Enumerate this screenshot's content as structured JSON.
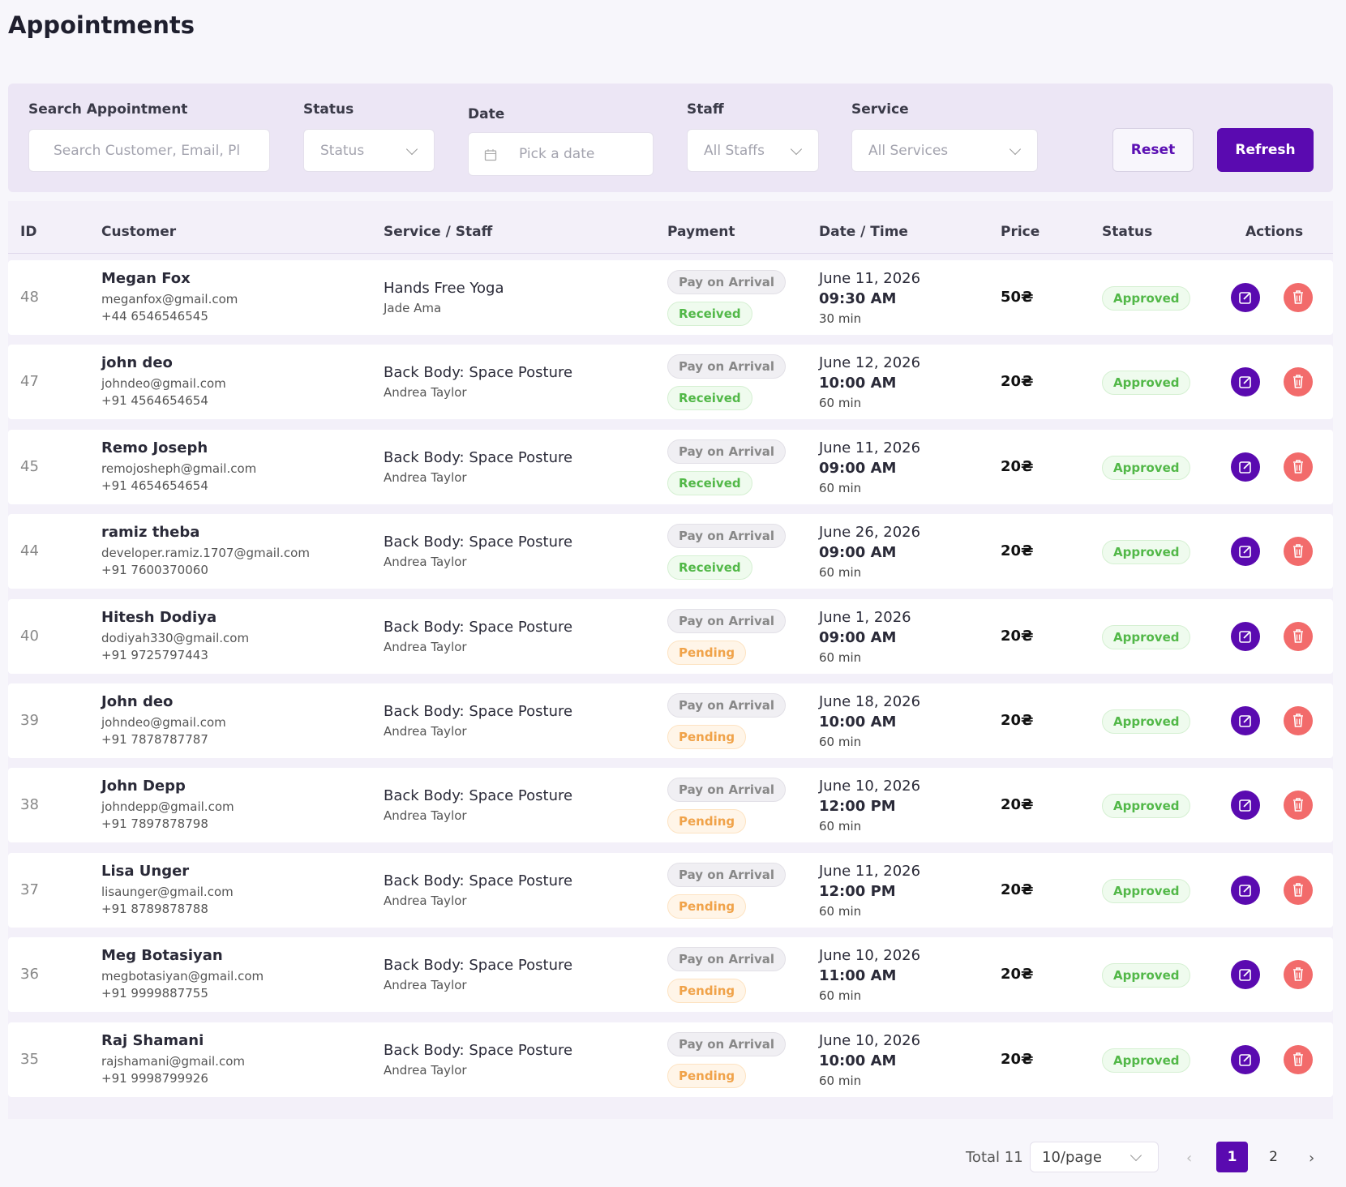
{
  "header": {
    "title": "Appointments"
  },
  "filters": {
    "search": {
      "label": "Search Appointment",
      "placeholder": "Search Customer, Email, Pl"
    },
    "status": {
      "label": "Status",
      "placeholder": "Status"
    },
    "date": {
      "label": "Date",
      "placeholder": "Pick a date"
    },
    "staff": {
      "label": "Staff",
      "placeholder": "All Staffs"
    },
    "service": {
      "label": "Service",
      "placeholder": "All Services"
    },
    "reset": "Reset",
    "refresh": "Refresh"
  },
  "table": {
    "headers": [
      "ID",
      "Customer",
      "Service / Staff",
      "Payment",
      "Date / Time",
      "Price",
      "Status",
      "Actions"
    ],
    "rows": [
      {
        "id": "48",
        "name": "Megan Fox",
        "email": "meganfox@gmail.com",
        "phone": "+44 6546546545",
        "service": "Hands Free Yoga",
        "staff": "Jade Ama",
        "payment_method": "Pay on Arrival",
        "payment_status": "Received",
        "date": "June 11, 2026",
        "time": "09:30 AM",
        "duration": "30 min",
        "price": "50₴",
        "status": "Approved"
      },
      {
        "id": "47",
        "name": "john deo",
        "email": "johndeo@gmail.com",
        "phone": "+91 4564654654",
        "service": "Back Body: Space Posture",
        "staff": "Andrea Taylor",
        "payment_method": "Pay on Arrival",
        "payment_status": "Received",
        "date": "June 12, 2026",
        "time": "10:00 AM",
        "duration": "60 min",
        "price": "20₴",
        "status": "Approved"
      },
      {
        "id": "45",
        "name": "Remo Joseph",
        "email": "remojosheph@gmail.com",
        "phone": "+91 4654654654",
        "service": "Back Body: Space Posture",
        "staff": "Andrea Taylor",
        "payment_method": "Pay on Arrival",
        "payment_status": "Received",
        "date": "June 11, 2026",
        "time": "09:00 AM",
        "duration": "60 min",
        "price": "20₴",
        "status": "Approved"
      },
      {
        "id": "44",
        "name": "ramiz theba",
        "email": "developer.ramiz.1707@gmail.com",
        "phone": "+91 7600370060",
        "service": "Back Body: Space Posture",
        "staff": "Andrea Taylor",
        "payment_method": "Pay on Arrival",
        "payment_status": "Received",
        "date": "June 26, 2026",
        "time": "09:00 AM",
        "duration": "60 min",
        "price": "20₴",
        "status": "Approved"
      },
      {
        "id": "40",
        "name": "Hitesh Dodiya",
        "email": "dodiyah330@gmail.com",
        "phone": "+91 9725797443",
        "service": "Back Body: Space Posture",
        "staff": "Andrea Taylor",
        "payment_method": "Pay on Arrival",
        "payment_status": "Pending",
        "date": "June 1, 2026",
        "time": "09:00 AM",
        "duration": "60 min",
        "price": "20₴",
        "status": "Approved"
      },
      {
        "id": "39",
        "name": "John deo",
        "email": "johndeo@gmail.com",
        "phone": "+91 7878787787",
        "service": "Back Body: Space Posture",
        "staff": "Andrea Taylor",
        "payment_method": "Pay on Arrival",
        "payment_status": "Pending",
        "date": "June 18, 2026",
        "time": "10:00 AM",
        "duration": "60 min",
        "price": "20₴",
        "status": "Approved"
      },
      {
        "id": "38",
        "name": "John Depp",
        "email": "johndepp@gmail.com",
        "phone": "+91 7897878798",
        "service": "Back Body: Space Posture",
        "staff": "Andrea Taylor",
        "payment_method": "Pay on Arrival",
        "payment_status": "Pending",
        "date": "June 10, 2026",
        "time": "12:00 PM",
        "duration": "60 min",
        "price": "20₴",
        "status": "Approved"
      },
      {
        "id": "37",
        "name": "Lisa Unger",
        "email": "lisaunger@gmail.com",
        "phone": "+91 8789878788",
        "service": "Back Body: Space Posture",
        "staff": "Andrea Taylor",
        "payment_method": "Pay on Arrival",
        "payment_status": "Pending",
        "date": "June 11, 2026",
        "time": "12:00 PM",
        "duration": "60 min",
        "price": "20₴",
        "status": "Approved"
      },
      {
        "id": "36",
        "name": "Meg Botasiyan",
        "email": "megbotasiyan@gmail.com",
        "phone": "+91 9999887755",
        "service": "Back Body: Space Posture",
        "staff": "Andrea Taylor",
        "payment_method": "Pay on Arrival",
        "payment_status": "Pending",
        "date": "June 10, 2026",
        "time": "11:00 AM",
        "duration": "60 min",
        "price": "20₴",
        "status": "Approved"
      },
      {
        "id": "35",
        "name": "Raj Shamani",
        "email": "rajshamani@gmail.com",
        "phone": "+91 9998799926",
        "service": "Back Body: Space Posture",
        "staff": "Andrea Taylor",
        "payment_method": "Pay on Arrival",
        "payment_status": "Pending",
        "date": "June 10, 2026",
        "time": "10:00 AM",
        "duration": "60 min",
        "price": "20₴",
        "status": "Approved"
      }
    ]
  },
  "pagination": {
    "total": "Total 11",
    "page_size": "10/page",
    "pages": [
      "1",
      "2"
    ]
  }
}
